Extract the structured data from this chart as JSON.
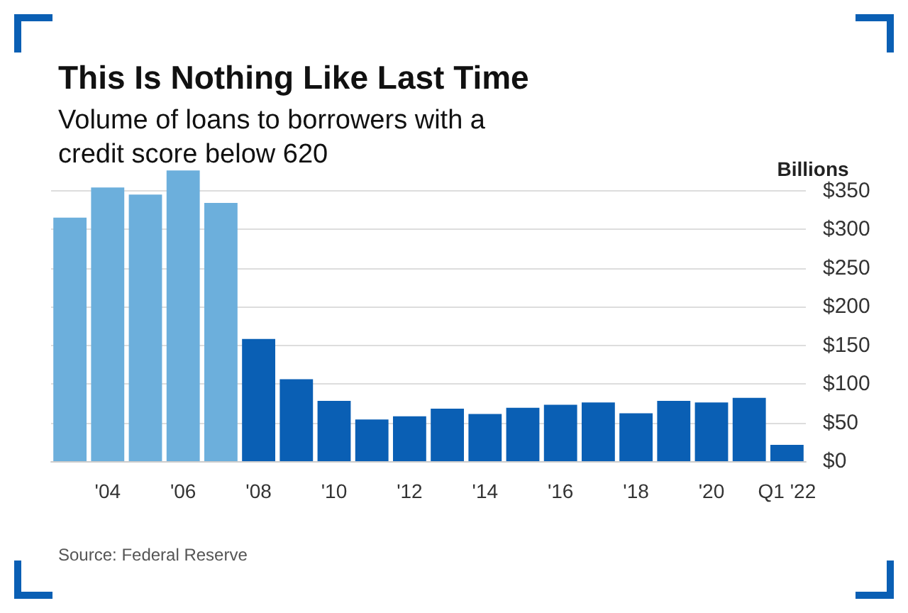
{
  "chart_data": {
    "type": "bar",
    "title": "This Is Nothing Like Last Time",
    "subtitle": "Volume of loans to borrowers with a credit score below 620",
    "ylabel": "Billions",
    "categories": [
      null,
      "'04",
      null,
      "'06",
      null,
      "'08",
      null,
      "'10",
      null,
      "'12",
      null,
      "'14",
      null,
      "'16",
      null,
      "'18",
      null,
      "'20",
      null,
      "Q1 '22"
    ],
    "values": [
      315,
      354,
      345,
      376,
      334,
      158,
      106,
      78,
      54,
      58,
      68,
      61,
      69,
      73,
      76,
      62,
      78,
      76,
      82,
      21
    ],
    "colors": [
      "#6cafdc",
      "#6cafdc",
      "#6cafdc",
      "#6cafdc",
      "#6cafdc",
      "#0a5fb4",
      "#0a5fb4",
      "#0a5fb4",
      "#0a5fb4",
      "#0a5fb4",
      "#0a5fb4",
      "#0a5fb4",
      "#0a5fb4",
      "#0a5fb4",
      "#0a5fb4",
      "#0a5fb4",
      "#0a5fb4",
      "#0a5fb4",
      "#0a5fb4",
      "#0a5fb4"
    ],
    "ylim": [
      0,
      380
    ],
    "yticks": [
      {
        "value": 0,
        "label": "$0"
      },
      {
        "value": 50,
        "label": "$50"
      },
      {
        "value": 100,
        "label": "$100"
      },
      {
        "value": 150,
        "label": "$150"
      },
      {
        "value": 200,
        "label": "$200"
      },
      {
        "value": 250,
        "label": "$250"
      },
      {
        "value": 300,
        "label": "$300"
      },
      {
        "value": 350,
        "label": "$350"
      }
    ],
    "grid": "y",
    "annotations": [
      "Source: Federal Reserve"
    ]
  }
}
